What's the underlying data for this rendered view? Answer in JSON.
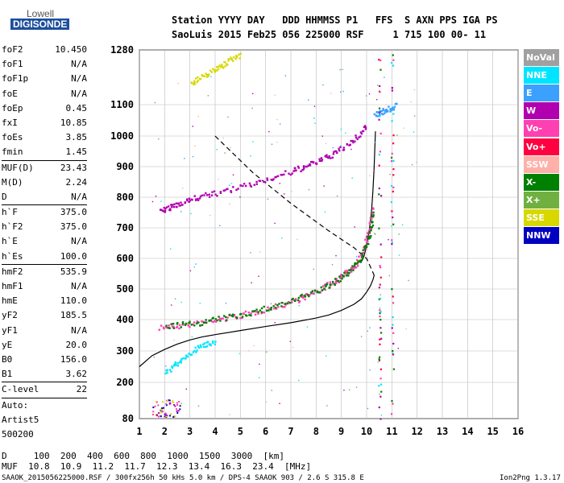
{
  "logo": {
    "line1": "Lowell",
    "line2": "DIGISONDE"
  },
  "header": {
    "row1": "Station YYYY DAY   DDD HHMMSS P1   FFS  S AXN PPS IGA PS",
    "row2": "SaoLuis 2015 Feb25 056 225000 RSF     1 715 100 00- 11"
  },
  "params": {
    "g1": [
      [
        "foF2",
        "10.450"
      ],
      [
        "foF1",
        "N/A"
      ],
      [
        "foF1p",
        "N/A"
      ],
      [
        "foE",
        "N/A"
      ],
      [
        "foEp",
        "0.45"
      ],
      [
        "fxI",
        "10.85"
      ],
      [
        "foEs",
        "3.85"
      ],
      [
        "fmin",
        "1.45"
      ]
    ],
    "g2": [
      [
        "MUF(D)",
        "23.43"
      ],
      [
        "M(D)",
        "2.24"
      ],
      [
        "D",
        "N/A"
      ]
    ],
    "g3": [
      [
        "h`F",
        "375.0"
      ],
      [
        "h`F2",
        "375.0"
      ],
      [
        "h`E",
        "N/A"
      ],
      [
        "h`Es",
        "100.0"
      ]
    ],
    "g4": [
      [
        "hmF2",
        "535.9"
      ],
      [
        "hmF1",
        "N/A"
      ],
      [
        "hmE",
        "110.0"
      ],
      [
        "yF2",
        "185.5"
      ],
      [
        "yF1",
        "N/A"
      ],
      [
        "yE",
        "20.0"
      ],
      [
        "B0",
        "156.0"
      ],
      [
        "B1",
        "3.62"
      ]
    ],
    "g5": [
      [
        "C-level",
        "22"
      ]
    ],
    "auto": [
      "Auto:",
      "Artist5",
      "500200"
    ]
  },
  "legend": [
    {
      "label": "NoVal",
      "color": "#a0a0a0"
    },
    {
      "label": "NNE",
      "color": "#00e5ff"
    },
    {
      "label": "E",
      "color": "#3ca0ff"
    },
    {
      "label": "W",
      "color": "#b000b0"
    },
    {
      "label": "Vo-",
      "color": "#ff40b0"
    },
    {
      "label": "Vo+",
      "color": "#ff0040"
    },
    {
      "label": "SSW",
      "color": "#ffb0a8"
    },
    {
      "label": "X-",
      "color": "#008000"
    },
    {
      "label": "X+",
      "color": "#70b040"
    },
    {
      "label": "SSE",
      "color": "#d8d800"
    },
    {
      "label": "NNW",
      "color": "#0000c0"
    }
  ],
  "bottom": {
    "d_row": "D     100  200  400  600  800  1000  1500  3000  [km]",
    "muf_row": "MUF  10.8  10.9  11.2  11.7  12.3  13.4  16.3  23.4  [MHz]",
    "footer_left": "SAAOK_2015056225000.RSF / 300fx256h 50 kHs 5.0 km / DPS-4 SAAOK 903 / 2.6 S 315.8 E",
    "footer_right": "Ion2Png 1.3.17"
  },
  "chart_data": {
    "type": "scatter",
    "xlabel": "",
    "ylabel": "",
    "x_ticks": [
      "1",
      "2",
      "3",
      "4",
      "5",
      "6",
      "7",
      "8",
      "9",
      "10",
      "11",
      "12",
      "13",
      "14",
      "15",
      "16"
    ],
    "y_ticks": [
      "80",
      "200",
      "300",
      "400",
      "500",
      "600",
      "700",
      "800",
      "900",
      "1000",
      "1100",
      "1280"
    ],
    "xlim": [
      1,
      16
    ],
    "ylim": [
      80,
      1280
    ],
    "grid": true,
    "series": [
      {
        "color": "#000000",
        "kind": "line",
        "x": [
          1.0,
          1.5,
          2.0,
          2.5,
          3.0,
          3.5,
          4.0,
          5.0,
          6.0,
          7.0,
          8.0,
          8.5,
          9.0,
          9.5,
          9.8,
          10.0,
          10.15,
          10.25,
          10.3
        ],
        "y": [
          250,
          285,
          305,
          322,
          335,
          345,
          352,
          365,
          378,
          390,
          405,
          415,
          430,
          450,
          468,
          490,
          510,
          530,
          545
        ]
      },
      {
        "color": "#000000",
        "kind": "line",
        "x": [
          10.35,
          10.3,
          10.25,
          10.2,
          10.15,
          10.1,
          10.05,
          10.0,
          9.95,
          9.9,
          9.8
        ],
        "y": [
          1015,
          900,
          820,
          760,
          720,
          690,
          665,
          645,
          625,
          608,
          590
        ]
      },
      {
        "color": "#000000",
        "kind": "dashed",
        "x": [
          4.0,
          5.5,
          7.0,
          8.5,
          9.5,
          10.0,
          10.3
        ],
        "y": [
          1000,
          880,
          780,
          690,
          635,
          600,
          545
        ]
      },
      {
        "color": "#ff40b0",
        "kind": "trace",
        "x": [
          1.8,
          2.5,
          3.5,
          4.5,
          5.5,
          6.5,
          7.3,
          8.0,
          8.7,
          9.2,
          9.6,
          9.9,
          10.1,
          10.2
        ],
        "y": [
          378,
          382,
          392,
          408,
          425,
          448,
          470,
          495,
          525,
          555,
          590,
          640,
          700,
          770
        ]
      },
      {
        "color": "#008000",
        "kind": "trace",
        "x": [
          2.0,
          3.0,
          4.0,
          5.0,
          6.0,
          7.0,
          8.0,
          8.7,
          9.3,
          9.8,
          10.1,
          10.25
        ],
        "y": [
          382,
          388,
          402,
          418,
          438,
          462,
          495,
          525,
          560,
          610,
          680,
          760
        ]
      },
      {
        "color": "#b000b0",
        "kind": "trace",
        "x": [
          1.8,
          2.2,
          2.6,
          3.2,
          4.0,
          5.0,
          6.0,
          7.0,
          7.6,
          8.2,
          8.8,
          9.5,
          10.0
        ],
        "y": [
          755,
          768,
          785,
          800,
          815,
          835,
          860,
          885,
          905,
          925,
          950,
          990,
          1040
        ]
      },
      {
        "color": "#3ca0ff",
        "kind": "trace",
        "x": [
          10.3,
          10.6,
          10.9,
          11.2
        ],
        "y": [
          1070,
          1080,
          1090,
          1100
        ]
      },
      {
        "color": "#00e5ff",
        "kind": "trace",
        "x": [
          2.0,
          2.5,
          3.0,
          3.5,
          4.0
        ],
        "y": [
          235,
          265,
          295,
          322,
          335
        ]
      },
      {
        "color": "#d8d800",
        "kind": "trace",
        "x": [
          3.0,
          3.5,
          4.0,
          4.5,
          5.0
        ],
        "y": [
          1170,
          1195,
          1220,
          1245,
          1270
        ]
      }
    ]
  }
}
